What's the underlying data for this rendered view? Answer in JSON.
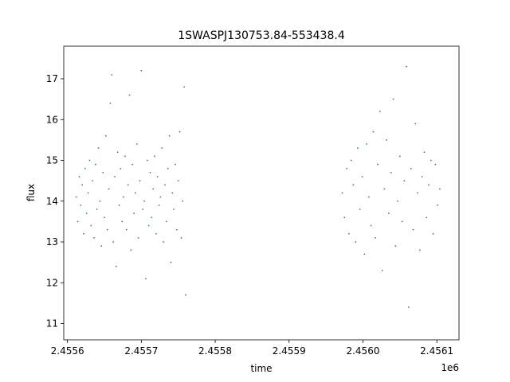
{
  "chart_data": {
    "type": "scatter",
    "title": "1SWASPJ130753.84-553438.4",
    "xlabel": "time",
    "ylabel": "flux",
    "x_offset_label": "1e6",
    "xlim": [
      2455595,
      2456130
    ],
    "ylim": [
      10.6,
      17.8
    ],
    "x_ticks": [
      2455600,
      2455700,
      2455800,
      2455900,
      2456000,
      2456100
    ],
    "x_tick_labels": [
      "2.4556",
      "2.4557",
      "2.4558",
      "2.4559",
      "2.4560",
      "2.4561"
    ],
    "y_ticks": [
      11,
      12,
      13,
      14,
      15,
      16,
      17
    ],
    "y_tick_labels": [
      "11",
      "12",
      "13",
      "14",
      "15",
      "16",
      "17"
    ],
    "grid": false,
    "marker_color": "#1f77b4",
    "series": [
      {
        "points": [
          [
            2455612,
            14.1
          ],
          [
            2455614,
            13.5
          ],
          [
            2455616,
            14.6
          ],
          [
            2455618,
            13.9
          ],
          [
            2455620,
            14.4
          ],
          [
            2455622,
            13.2
          ],
          [
            2455624,
            14.8
          ],
          [
            2455626,
            13.7
          ],
          [
            2455628,
            14.2
          ],
          [
            2455630,
            15.0
          ],
          [
            2455632,
            13.4
          ],
          [
            2455634,
            14.5
          ],
          [
            2455636,
            13.1
          ],
          [
            2455638,
            14.9
          ],
          [
            2455640,
            13.8
          ],
          [
            2455642,
            15.3
          ],
          [
            2455644,
            14.0
          ],
          [
            2455646,
            12.9
          ],
          [
            2455648,
            14.7
          ],
          [
            2455650,
            13.6
          ],
          [
            2455652,
            15.6
          ],
          [
            2455654,
            13.3
          ],
          [
            2455656,
            14.3
          ],
          [
            2455658,
            16.4
          ],
          [
            2455660,
            17.1
          ],
          [
            2455662,
            13.0
          ],
          [
            2455664,
            14.6
          ],
          [
            2455666,
            12.4
          ],
          [
            2455668,
            15.2
          ],
          [
            2455670,
            13.9
          ],
          [
            2455672,
            14.8
          ],
          [
            2455674,
            13.5
          ],
          [
            2455676,
            14.1
          ],
          [
            2455678,
            15.1
          ],
          [
            2455680,
            13.3
          ],
          [
            2455682,
            14.4
          ],
          [
            2455684,
            16.6
          ],
          [
            2455686,
            12.8
          ],
          [
            2455688,
            14.9
          ],
          [
            2455690,
            13.7
          ],
          [
            2455692,
            14.2
          ],
          [
            2455694,
            15.4
          ],
          [
            2455696,
            13.1
          ],
          [
            2455698,
            14.5
          ],
          [
            2455700,
            17.2
          ],
          [
            2455702,
            13.8
          ],
          [
            2455704,
            14.0
          ],
          [
            2455706,
            12.1
          ],
          [
            2455708,
            15.0
          ],
          [
            2455710,
            13.4
          ],
          [
            2455712,
            14.7
          ],
          [
            2455714,
            13.6
          ],
          [
            2455716,
            14.3
          ],
          [
            2455718,
            15.1
          ],
          [
            2455720,
            13.2
          ],
          [
            2455722,
            14.6
          ],
          [
            2455724,
            13.9
          ],
          [
            2455726,
            14.1
          ],
          [
            2455728,
            15.3
          ],
          [
            2455730,
            13.0
          ],
          [
            2455732,
            14.4
          ],
          [
            2455734,
            13.5
          ],
          [
            2455736,
            14.8
          ],
          [
            2455738,
            15.6
          ],
          [
            2455740,
            12.5
          ],
          [
            2455742,
            14.2
          ],
          [
            2455744,
            13.8
          ],
          [
            2455746,
            14.9
          ],
          [
            2455748,
            13.3
          ],
          [
            2455750,
            14.5
          ],
          [
            2455752,
            15.7
          ],
          [
            2455754,
            13.1
          ],
          [
            2455756,
            14.0
          ],
          [
            2455758,
            16.8
          ],
          [
            2455760,
            11.7
          ],
          [
            2455972,
            14.2
          ],
          [
            2455975,
            13.6
          ],
          [
            2455978,
            14.8
          ],
          [
            2455981,
            13.2
          ],
          [
            2455984,
            15.0
          ],
          [
            2455987,
            14.4
          ],
          [
            2455990,
            13.0
          ],
          [
            2455993,
            15.3
          ],
          [
            2455996,
            13.8
          ],
          [
            2455999,
            14.6
          ],
          [
            2456002,
            12.7
          ],
          [
            2456005,
            15.4
          ],
          [
            2456008,
            14.1
          ],
          [
            2456011,
            13.4
          ],
          [
            2456014,
            15.7
          ],
          [
            2456017,
            13.1
          ],
          [
            2456020,
            14.9
          ],
          [
            2456023,
            16.2
          ],
          [
            2456026,
            12.3
          ],
          [
            2456029,
            14.3
          ],
          [
            2456032,
            15.5
          ],
          [
            2456035,
            13.7
          ],
          [
            2456038,
            14.7
          ],
          [
            2456041,
            16.5
          ],
          [
            2456044,
            12.9
          ],
          [
            2456047,
            14.0
          ],
          [
            2456050,
            15.1
          ],
          [
            2456053,
            13.5
          ],
          [
            2456056,
            14.5
          ],
          [
            2456059,
            17.3
          ],
          [
            2456062,
            11.4
          ],
          [
            2456065,
            14.8
          ],
          [
            2456068,
            13.3
          ],
          [
            2456071,
            15.9
          ],
          [
            2456074,
            14.2
          ],
          [
            2456077,
            12.8
          ],
          [
            2456080,
            14.6
          ],
          [
            2456083,
            15.2
          ],
          [
            2456086,
            13.6
          ],
          [
            2456089,
            14.4
          ],
          [
            2456092,
            15.0
          ],
          [
            2456095,
            13.2
          ],
          [
            2456098,
            14.9
          ],
          [
            2456101,
            13.9
          ],
          [
            2456104,
            14.3
          ]
        ]
      }
    ]
  }
}
